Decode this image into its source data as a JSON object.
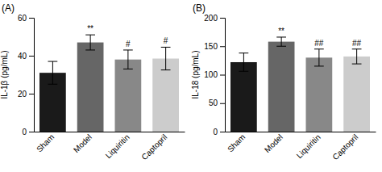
{
  "chart_data": [
    {
      "type": "bar",
      "title": "(A)",
      "ylabel": "IL-1β (pg/mL)",
      "categories": [
        "Sham",
        "Model",
        "Liquiritin",
        "Captopril"
      ],
      "values": [
        31,
        47,
        38,
        38.5
      ],
      "errors": [
        6,
        4,
        5,
        6
      ],
      "colors": [
        "#1a1a1a",
        "#666666",
        "#888888",
        "#cccccc"
      ],
      "ylim": [
        0,
        60
      ],
      "yticks": [
        0,
        20,
        40,
        60
      ],
      "annotations": [
        null,
        "**",
        "#",
        "#"
      ],
      "grid": false
    },
    {
      "type": "bar",
      "title": "(B)",
      "ylabel": "IL-18 (pg/mL)",
      "categories": [
        "Sham",
        "Model",
        "Liquiritin",
        "Captopril"
      ],
      "values": [
        122,
        158,
        130,
        132
      ],
      "errors": [
        16,
        8,
        15,
        13
      ],
      "colors": [
        "#1a1a1a",
        "#666666",
        "#888888",
        "#cccccc"
      ],
      "ylim": [
        0,
        200
      ],
      "yticks": [
        0,
        50,
        100,
        150,
        200
      ],
      "annotations": [
        null,
        "**",
        "##",
        "##"
      ],
      "grid": false
    }
  ]
}
